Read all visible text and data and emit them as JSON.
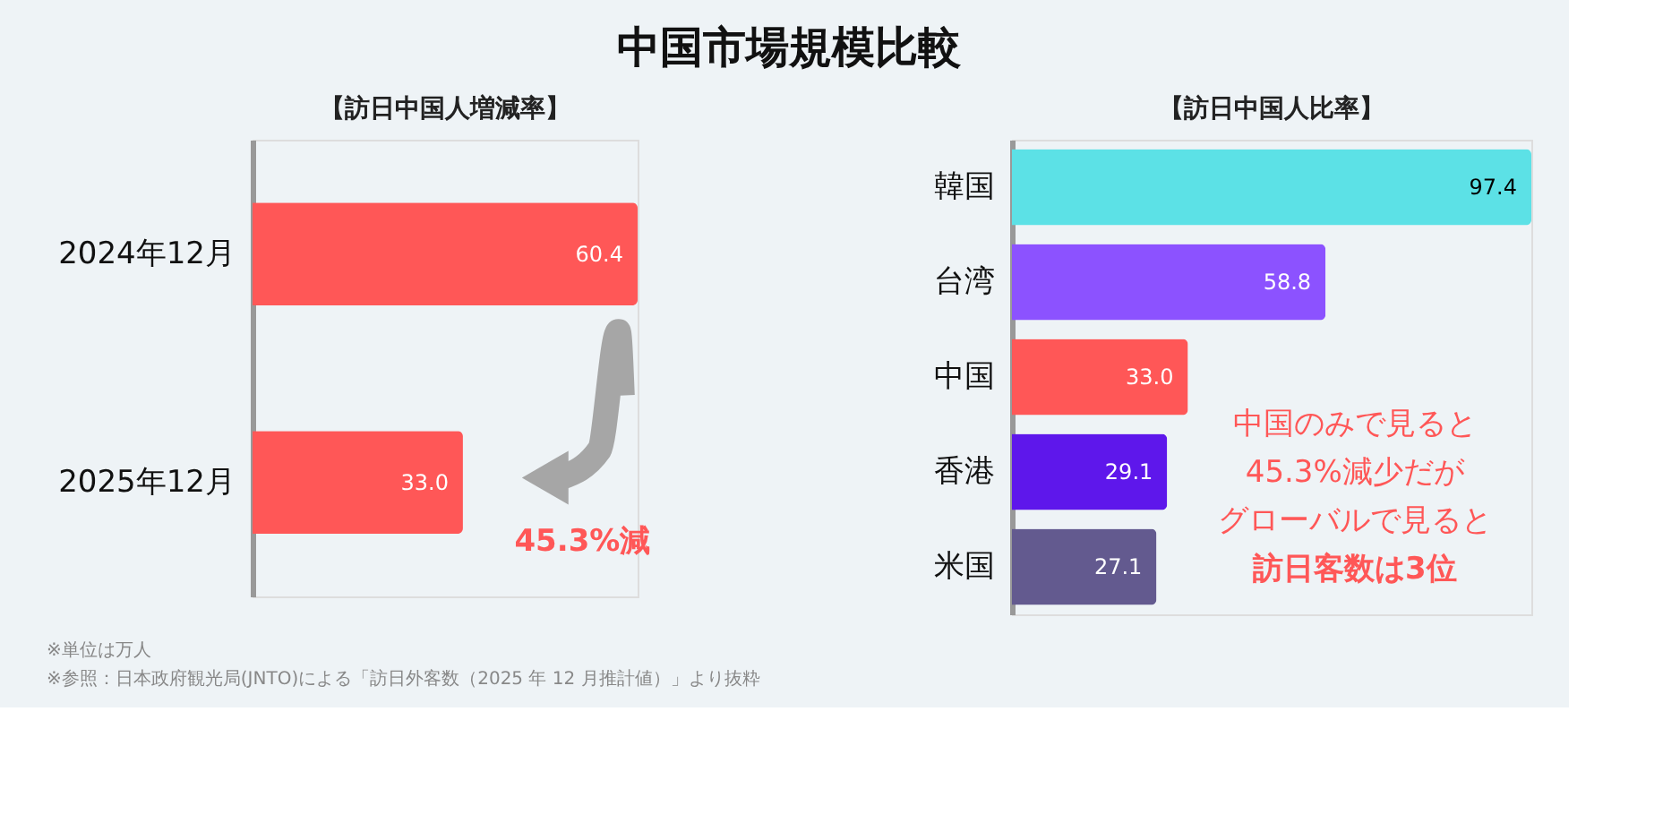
{
  "chart_data": [
    {
      "type": "bar",
      "orientation": "horizontal",
      "title": "中国市場規模比較",
      "subtitle": "【訪日中国人増減率】",
      "categories": [
        "2024年12月",
        "2025年12月"
      ],
      "values": [
        60.4,
        33.0
      ],
      "color": "#ff5757",
      "value_labels": [
        "60.4",
        "33.0"
      ],
      "annotations": [
        "45.3%減",
        "※単位は万人",
        "※参照：日本政府観光局(JNTO)による「訪日外客数（2025 年 12 月推計値）」より抜粋"
      ]
    },
    {
      "type": "bar",
      "orientation": "horizontal",
      "subtitle": "【訪日中国人比率】",
      "categories": [
        "韓国",
        "台湾",
        "中国",
        "香港",
        "米国"
      ],
      "values": [
        97.4,
        58.8,
        33.0,
        29.1,
        27.1
      ],
      "colors": [
        "#5ce1e6",
        "#8c52ff",
        "#ff5757",
        "#5e17eb",
        "#635a8f"
      ],
      "value_labels": [
        "97.4",
        "58.8",
        "33.0",
        "29.1",
        "27.1"
      ],
      "annotations": [
        "中国のみで見ると",
        "45.3%減少だが",
        "グローバルで見ると",
        "訪日客数は3位"
      ]
    }
  ]
}
